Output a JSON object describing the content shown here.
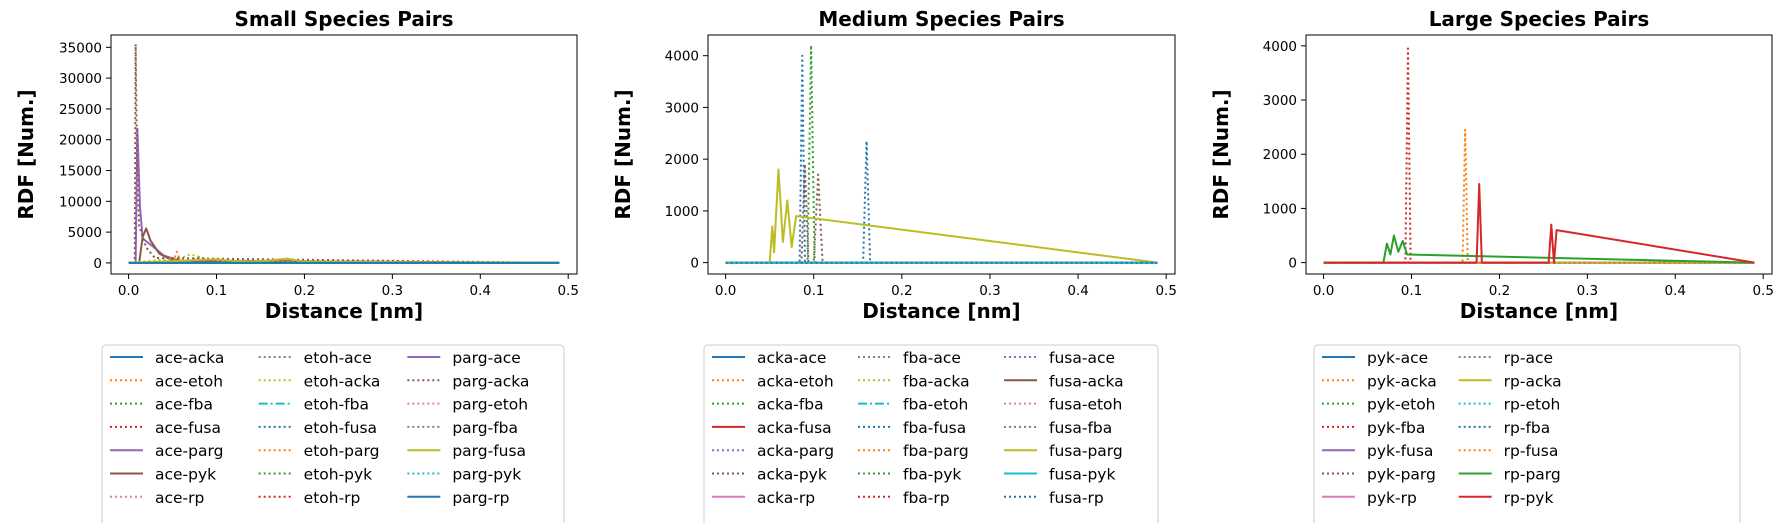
{
  "chart_data": [
    {
      "type": "line",
      "title": "Small Species Pairs",
      "xlabel": "Distance [nm]",
      "ylabel": "RDF [Num.]",
      "xlim": [
        -0.02,
        0.51
      ],
      "ylim": [
        -1800,
        37000
      ],
      "xticks": [
        "0.0",
        "0.1",
        "0.2",
        "0.3",
        "0.4",
        "0.5"
      ],
      "yticks": [
        "0",
        "5000",
        "10000",
        "15000",
        "20000",
        "25000",
        "30000",
        "35000"
      ],
      "legend_location": "below",
      "series": [
        {
          "name": "ace-acka",
          "color": "#1f77b4",
          "style": "solid",
          "x": [
            0.0,
            0.49
          ],
          "y": [
            0,
            0
          ]
        },
        {
          "name": "ace-etoh",
          "color": "#ff7f0e",
          "style": "dotted",
          "x": [
            0.0,
            0.05,
            0.055,
            0.06,
            0.49
          ],
          "y": [
            0,
            0,
            1800,
            0,
            0
          ]
        },
        {
          "name": "ace-fba",
          "color": "#2ca02c",
          "style": "dotted",
          "x": [
            0.0,
            0.07,
            0.08,
            0.09,
            0.1,
            0.49
          ],
          "y": [
            0,
            300,
            900,
            400,
            200,
            0
          ]
        },
        {
          "name": "ace-fusa",
          "color": "#d62728",
          "style": "dotted",
          "x": [
            0.0,
            0.16,
            0.17,
            0.18,
            0.49
          ],
          "y": [
            0,
            200,
            500,
            200,
            0
          ]
        },
        {
          "name": "ace-parg",
          "color": "#9467bd",
          "style": "solid",
          "x": [
            0.0,
            0.008,
            0.01,
            0.013,
            0.016,
            0.02,
            0.03,
            0.04,
            0.06,
            0.49
          ],
          "y": [
            0,
            0,
            21800,
            9000,
            4000,
            3500,
            2400,
            1200,
            300,
            0
          ]
        },
        {
          "name": "ace-pyk",
          "color": "#8c564b",
          "style": "solid",
          "x": [
            0.0,
            0.012,
            0.016,
            0.02,
            0.025,
            0.035,
            0.05,
            0.49
          ],
          "y": [
            0,
            0,
            4200,
            5600,
            3600,
            1500,
            400,
            0
          ]
        },
        {
          "name": "ace-rp",
          "color": "#e377c2",
          "style": "dotted",
          "x": [
            0.0,
            0.49
          ],
          "y": [
            0,
            0
          ]
        },
        {
          "name": "etoh-ace",
          "color": "#7f7f7f",
          "style": "dotted",
          "x": [
            0.0,
            0.49
          ],
          "y": [
            0,
            0
          ]
        },
        {
          "name": "etoh-acka",
          "color": "#bcbd22",
          "style": "dotted",
          "x": [
            0.0,
            0.06,
            0.07,
            0.09,
            0.11,
            0.49
          ],
          "y": [
            0,
            800,
            1400,
            600,
            300,
            0
          ]
        },
        {
          "name": "etoh-fba",
          "color": "#17becf",
          "style": "dashdot",
          "x": [
            0.0,
            0.49
          ],
          "y": [
            0,
            0
          ]
        },
        {
          "name": "etoh-fusa",
          "color": "#1f77b4",
          "style": "dotted",
          "x": [
            0.0,
            0.49
          ],
          "y": [
            0,
            0
          ]
        },
        {
          "name": "etoh-parg",
          "color": "#ff7f0e",
          "style": "dotted",
          "x": [
            0.0,
            0.49
          ],
          "y": [
            0,
            0
          ]
        },
        {
          "name": "etoh-pyk",
          "color": "#2ca02c",
          "style": "dotted",
          "x": [
            0.0,
            0.49
          ],
          "y": [
            0,
            0
          ]
        },
        {
          "name": "etoh-rp",
          "color": "#d62728",
          "style": "dotted",
          "x": [
            0.0,
            0.49
          ],
          "y": [
            0,
            0
          ]
        },
        {
          "name": "parg-ace",
          "color": "#9467bd",
          "style": "solid",
          "x": [
            0.0,
            0.49
          ],
          "y": [
            0,
            0
          ]
        },
        {
          "name": "parg-acka",
          "color": "#8c564b",
          "style": "dotted",
          "x": [
            0.0,
            0.007,
            0.008,
            0.0095,
            0.012,
            0.02,
            0.03,
            0.49
          ],
          "y": [
            0,
            0,
            35500,
            18000,
            6000,
            2500,
            800,
            0
          ]
        },
        {
          "name": "parg-etoh",
          "color": "#e377c2",
          "style": "dotted",
          "x": [
            0.0,
            0.49
          ],
          "y": [
            0,
            0
          ]
        },
        {
          "name": "parg-fba",
          "color": "#7f7f7f",
          "style": "dotted",
          "x": [
            0.0,
            0.49
          ],
          "y": [
            0,
            0
          ]
        },
        {
          "name": "parg-fusa",
          "color": "#bcbd22",
          "style": "solid",
          "x": [
            0.0,
            0.1,
            0.12,
            0.14,
            0.16,
            0.18,
            0.2,
            0.49
          ],
          "y": [
            0,
            600,
            300,
            250,
            400,
            700,
            200,
            0
          ]
        },
        {
          "name": "parg-pyk",
          "color": "#17becf",
          "style": "dotted",
          "x": [
            0.0,
            0.49
          ],
          "y": [
            0,
            0
          ]
        },
        {
          "name": "parg-rp",
          "color": "#1f77b4",
          "style": "solid",
          "x": [
            0.0,
            0.49
          ],
          "y": [
            0,
            0
          ]
        }
      ]
    },
    {
      "type": "line",
      "title": "Medium Species Pairs",
      "xlabel": "Distance [nm]",
      "ylabel": "RDF [Num.]",
      "xlim": [
        -0.02,
        0.51
      ],
      "ylim": [
        -220,
        4400
      ],
      "xticks": [
        "0.0",
        "0.1",
        "0.2",
        "0.3",
        "0.4",
        "0.5"
      ],
      "yticks": [
        "0",
        "1000",
        "2000",
        "3000",
        "4000"
      ],
      "legend_location": "below",
      "series": [
        {
          "name": "acka-ace",
          "color": "#1f77b4",
          "style": "solid",
          "x": [
            0.0,
            0.49
          ],
          "y": [
            0,
            0
          ]
        },
        {
          "name": "acka-etoh",
          "color": "#ff7f0e",
          "style": "dotted",
          "x": [
            0.0,
            0.49
          ],
          "y": [
            0,
            0
          ]
        },
        {
          "name": "acka-fba",
          "color": "#2ca02c",
          "style": "dotted",
          "x": [
            0.0,
            0.093,
            0.097,
            0.101,
            0.49
          ],
          "y": [
            0,
            0,
            4200,
            0,
            0
          ]
        },
        {
          "name": "acka-fusa",
          "color": "#d62728",
          "style": "solid",
          "x": [
            0.0,
            0.49
          ],
          "y": [
            0,
            0
          ]
        },
        {
          "name": "acka-parg",
          "color": "#9467bd",
          "style": "dotted",
          "x": [
            0.0,
            0.49
          ],
          "y": [
            0,
            0
          ]
        },
        {
          "name": "acka-pyk",
          "color": "#8c564b",
          "style": "dotted",
          "x": [
            0.0,
            0.086,
            0.09,
            0.094,
            0.1,
            0.105,
            0.11,
            0.49
          ],
          "y": [
            0,
            0,
            1900,
            0,
            0,
            1700,
            0,
            0
          ]
        },
        {
          "name": "acka-rp",
          "color": "#e377c2",
          "style": "solid",
          "x": [
            0.0,
            0.49
          ],
          "y": [
            0,
            0
          ]
        },
        {
          "name": "fba-ace",
          "color": "#7f7f7f",
          "style": "dotted",
          "x": [
            0.0,
            0.49
          ],
          "y": [
            0,
            0
          ]
        },
        {
          "name": "fba-acka",
          "color": "#bcbd22",
          "style": "dotted",
          "x": [
            0.0,
            0.49
          ],
          "y": [
            0,
            0
          ]
        },
        {
          "name": "fba-etoh",
          "color": "#17becf",
          "style": "dashdot",
          "x": [
            0.0,
            0.49
          ],
          "y": [
            0,
            0
          ]
        },
        {
          "name": "fba-fusa",
          "color": "#1f77b4",
          "style": "dotted",
          "x": [
            0.0,
            0.084,
            0.087,
            0.09,
            0.156,
            0.16,
            0.164,
            0.49
          ],
          "y": [
            0,
            0,
            4000,
            0,
            0,
            2350,
            0,
            0
          ]
        },
        {
          "name": "fba-parg",
          "color": "#ff7f0e",
          "style": "dotted",
          "x": [
            0.0,
            0.49
          ],
          "y": [
            0,
            0
          ]
        },
        {
          "name": "fba-pyk",
          "color": "#2ca02c",
          "style": "dotted",
          "x": [
            0.0,
            0.49
          ],
          "y": [
            0,
            0
          ]
        },
        {
          "name": "fba-rp",
          "color": "#d62728",
          "style": "dotted",
          "x": [
            0.0,
            0.49
          ],
          "y": [
            0,
            0
          ]
        },
        {
          "name": "fusa-ace",
          "color": "#9467bd",
          "style": "dotted",
          "x": [
            0.0,
            0.49
          ],
          "y": [
            0,
            0
          ]
        },
        {
          "name": "fusa-acka",
          "color": "#8c564b",
          "style": "solid",
          "x": [
            0.0,
            0.49
          ],
          "y": [
            0,
            0
          ]
        },
        {
          "name": "fusa-etoh",
          "color": "#e377c2",
          "style": "dotted",
          "x": [
            0.0,
            0.49
          ],
          "y": [
            0,
            0
          ]
        },
        {
          "name": "fusa-fba",
          "color": "#7f7f7f",
          "style": "dotted",
          "x": [
            0.0,
            0.49
          ],
          "y": [
            0,
            0
          ]
        },
        {
          "name": "fusa-parg",
          "color": "#bcbd22",
          "style": "solid",
          "x": [
            0.0,
            0.05,
            0.053,
            0.055,
            0.06,
            0.065,
            0.07,
            0.075,
            0.08,
            0.49
          ],
          "y": [
            0,
            0,
            700,
            200,
            1800,
            400,
            1200,
            300,
            900,
            0
          ]
        },
        {
          "name": "fusa-pyk",
          "color": "#17becf",
          "style": "solid",
          "x": [
            0.0,
            0.49
          ],
          "y": [
            0,
            0
          ]
        },
        {
          "name": "fusa-rp",
          "color": "#1f77b4",
          "style": "dotted",
          "x": [
            0.0,
            0.49
          ],
          "y": [
            0,
            0
          ]
        }
      ]
    },
    {
      "type": "line",
      "title": "Large Species Pairs",
      "xlabel": "Distance [nm]",
      "ylabel": "RDF [Num.]",
      "xlim": [
        -0.02,
        0.51
      ],
      "ylim": [
        -210,
        4200
      ],
      "xticks": [
        "0.0",
        "0.1",
        "0.2",
        "0.3",
        "0.4",
        "0.5"
      ],
      "yticks": [
        "0",
        "1000",
        "2000",
        "3000",
        "4000"
      ],
      "legend_location": "below",
      "series": [
        {
          "name": "pyk-ace",
          "color": "#1f77b4",
          "style": "solid",
          "x": [
            0.0,
            0.49
          ],
          "y": [
            0,
            0
          ]
        },
        {
          "name": "pyk-acka",
          "color": "#ff7f0e",
          "style": "dotted",
          "x": [
            0.0,
            0.158,
            0.161,
            0.164,
            0.49
          ],
          "y": [
            0,
            0,
            2450,
            0,
            0
          ]
        },
        {
          "name": "pyk-etoh",
          "color": "#2ca02c",
          "style": "dotted",
          "x": [
            0.0,
            0.49
          ],
          "y": [
            0,
            0
          ]
        },
        {
          "name": "pyk-fba",
          "color": "#d62728",
          "style": "dotted",
          "x": [
            0.0,
            0.093,
            0.096,
            0.099,
            0.49
          ],
          "y": [
            0,
            0,
            3950,
            0,
            0
          ]
        },
        {
          "name": "pyk-fusa",
          "color": "#9467bd",
          "style": "solid",
          "x": [
            0.0,
            0.49
          ],
          "y": [
            0,
            0
          ]
        },
        {
          "name": "pyk-parg",
          "color": "#8c564b",
          "style": "dotted",
          "x": [
            0.0,
            0.49
          ],
          "y": [
            0,
            0
          ]
        },
        {
          "name": "pyk-rp",
          "color": "#e377c2",
          "style": "solid",
          "x": [
            0.0,
            0.49
          ],
          "y": [
            0,
            0
          ]
        },
        {
          "name": "rp-ace",
          "color": "#7f7f7f",
          "style": "dotted",
          "x": [
            0.0,
            0.49
          ],
          "y": [
            0,
            0
          ]
        },
        {
          "name": "rp-acka",
          "color": "#bcbd22",
          "style": "solid",
          "x": [
            0.0,
            0.49
          ],
          "y": [
            0,
            0
          ]
        },
        {
          "name": "rp-etoh",
          "color": "#17becf",
          "style": "dotted",
          "x": [
            0.0,
            0.49
          ],
          "y": [
            0,
            0
          ]
        },
        {
          "name": "rp-fba",
          "color": "#1f77b4",
          "style": "dotted",
          "x": [
            0.0,
            0.49
          ],
          "y": [
            0,
            0
          ]
        },
        {
          "name": "rp-fusa",
          "color": "#ff7f0e",
          "style": "dotted",
          "x": [
            0.0,
            0.49
          ],
          "y": [
            0,
            0
          ]
        },
        {
          "name": "rp-parg",
          "color": "#2ca02c",
          "style": "solid",
          "x": [
            0.0,
            0.068,
            0.072,
            0.076,
            0.08,
            0.085,
            0.09,
            0.095,
            0.49
          ],
          "y": [
            0,
            0,
            350,
            150,
            500,
            200,
            400,
            150,
            0
          ]
        },
        {
          "name": "rp-pyk",
          "color": "#d62728",
          "style": "solid",
          "x": [
            0.0,
            0.174,
            0.177,
            0.18,
            0.256,
            0.259,
            0.262,
            0.265,
            0.49
          ],
          "y": [
            0,
            0,
            1450,
            0,
            0,
            700,
            0,
            600,
            0
          ]
        }
      ]
    }
  ]
}
